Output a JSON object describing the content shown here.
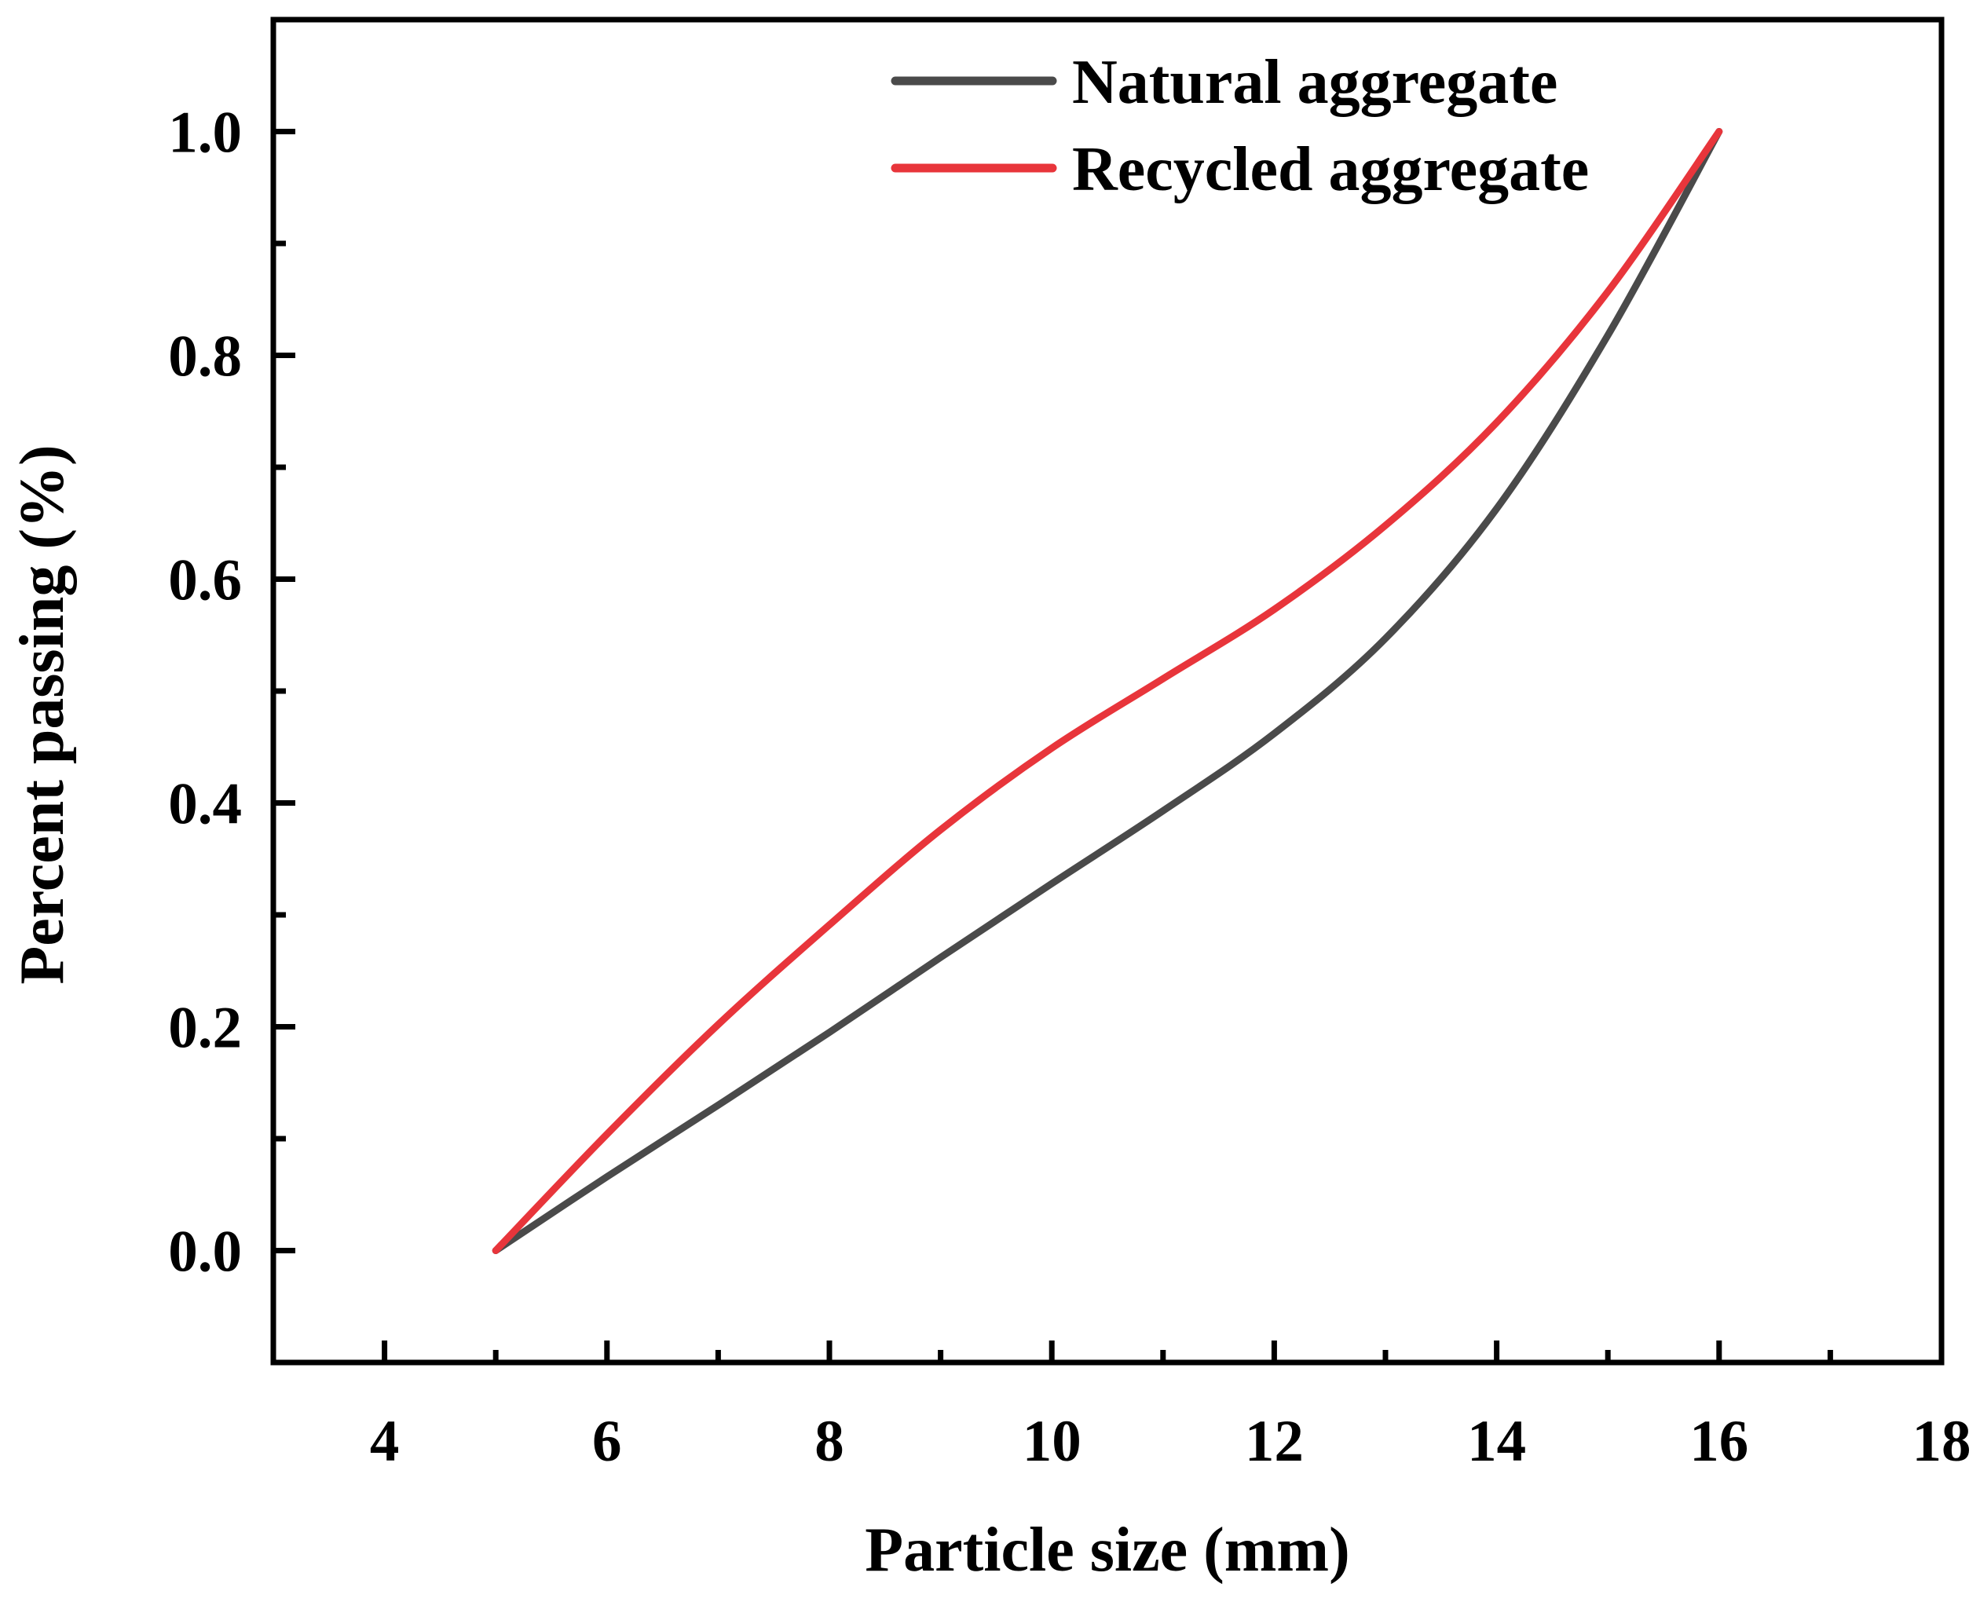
{
  "chart_data": {
    "type": "line",
    "title": "",
    "xlabel": "Particle size (mm)",
    "ylabel": "Percent passing (%)",
    "xlim": [
      3,
      18
    ],
    "ylim": [
      -0.1,
      1.1
    ],
    "xticks": [
      4,
      6,
      8,
      10,
      12,
      14,
      16,
      18
    ],
    "xtick_labels": [
      "4",
      "6",
      "8",
      "10",
      "12",
      "14",
      "16",
      "18"
    ],
    "yticks": [
      0.0,
      0.2,
      0.4,
      0.6,
      0.8,
      1.0
    ],
    "ytick_labels": [
      "0.0",
      "0.2",
      "0.4",
      "0.6",
      "0.8",
      "1.0"
    ],
    "grid": false,
    "legend_position": "top-right",
    "series": [
      {
        "name": "Natural aggregate",
        "color": "#4a4a4a",
        "x": [
          5,
          6,
          7,
          8,
          9,
          10,
          11,
          12,
          13,
          14,
          15,
          16
        ],
        "y": [
          0.0,
          0.066,
          0.13,
          0.195,
          0.262,
          0.328,
          0.393,
          0.462,
          0.547,
          0.663,
          0.818,
          1.0
        ]
      },
      {
        "name": "Recycled aggregate",
        "color": "#e8353b",
        "x": [
          5,
          6,
          7,
          8,
          9,
          10,
          11,
          12,
          13,
          14,
          15,
          16
        ],
        "y": [
          0.0,
          0.104,
          0.202,
          0.291,
          0.376,
          0.449,
          0.511,
          0.573,
          0.648,
          0.74,
          0.857,
          1.0
        ]
      }
    ]
  }
}
